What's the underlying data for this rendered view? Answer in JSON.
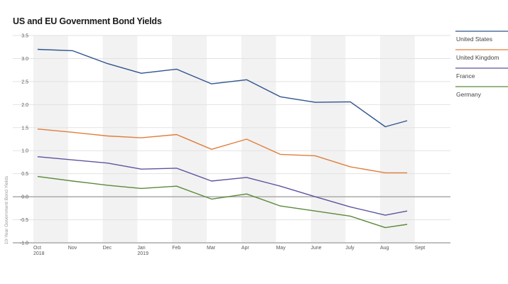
{
  "chart_data": {
    "type": "line",
    "title": "US and EU Government Bond Yields",
    "xlabel": "",
    "ylabel": "10-Year Government Bond Yields",
    "ylim": [
      -1.0,
      3.5
    ],
    "yticks": [
      "3.5",
      "3.0",
      "2.5",
      "2.0",
      "1.5",
      "1.0",
      "0.5",
      "0.0",
      "-0.5",
      "-1.0"
    ],
    "ytick_values": [
      3.5,
      3.0,
      2.5,
      2.0,
      1.5,
      1.0,
      0.5,
      0.0,
      -0.5,
      -1.0
    ],
    "x_ticks": [
      {
        "label": "Oct",
        "sub": "2018"
      },
      {
        "label": "Nov",
        "sub": ""
      },
      {
        "label": "Dec",
        "sub": ""
      },
      {
        "label": "Jan",
        "sub": "2019"
      },
      {
        "label": "Feb",
        "sub": ""
      },
      {
        "label": "Mar",
        "sub": ""
      },
      {
        "label": "Apr",
        "sub": ""
      },
      {
        "label": "May",
        "sub": ""
      },
      {
        "label": "June",
        "sub": ""
      },
      {
        "label": "July",
        "sub": ""
      },
      {
        "label": "Aug",
        "sub": ""
      },
      {
        "label": "Sept",
        "sub": ""
      }
    ],
    "x": [
      0.12,
      1.13,
      2.14,
      3.11,
      4.13,
      5.14,
      6.15,
      7.12,
      8.13,
      9.14,
      10.15,
      10.78
    ],
    "grid": true,
    "legend_position": "right",
    "series": [
      {
        "name": "United States",
        "color": "#2f548e",
        "values": [
          3.2,
          3.17,
          2.89,
          2.68,
          2.77,
          2.45,
          2.54,
          2.17,
          2.05,
          2.06,
          1.52,
          1.65
        ]
      },
      {
        "name": "United Kingdom",
        "color": "#e07e3c",
        "values": [
          1.47,
          1.4,
          1.32,
          1.28,
          1.35,
          1.03,
          1.25,
          0.92,
          0.89,
          0.65,
          0.52,
          0.52
        ]
      },
      {
        "name": "France",
        "color": "#5c55a0",
        "values": [
          0.87,
          0.8,
          0.73,
          0.6,
          0.62,
          0.34,
          0.42,
          0.23,
          0.0,
          -0.22,
          -0.4,
          -0.31
        ]
      },
      {
        "name": "Germany",
        "color": "#5a8a3a",
        "values": [
          0.44,
          0.34,
          0.25,
          0.18,
          0.23,
          -0.05,
          0.06,
          -0.2,
          -0.31,
          -0.42,
          -0.67,
          -0.6
        ]
      }
    ]
  }
}
